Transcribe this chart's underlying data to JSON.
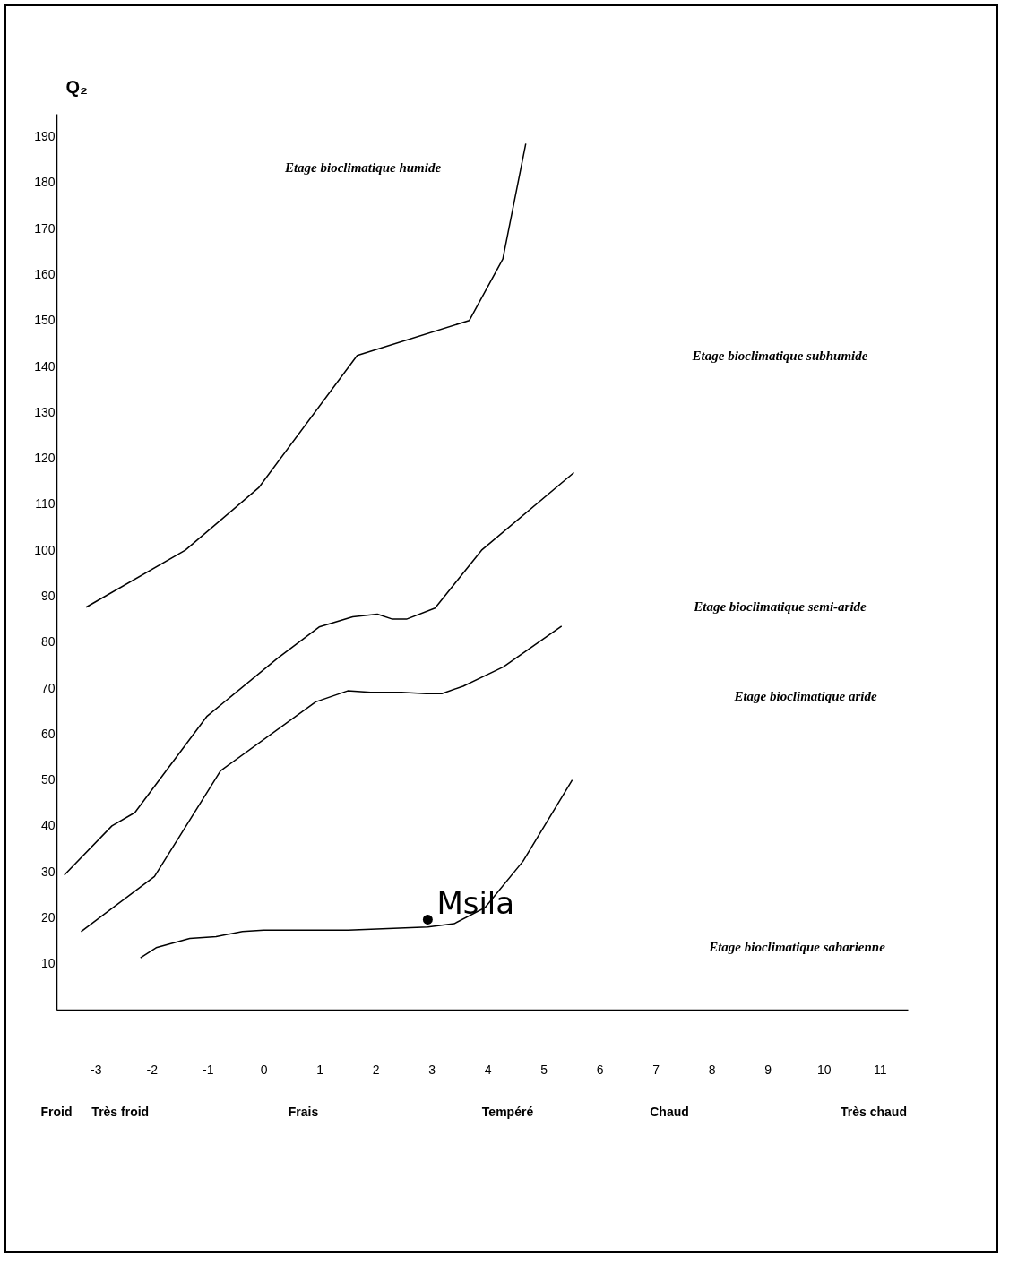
{
  "chart_data": {
    "type": "line",
    "ylabel": "Q₂",
    "xlim": [
      -3.7,
      11.5
    ],
    "ylim": [
      0,
      195
    ],
    "xticks": [
      -3,
      -2,
      -1,
      0,
      1,
      2,
      3,
      4,
      5,
      6,
      7,
      8,
      9,
      10,
      11
    ],
    "yticks": [
      10,
      20,
      30,
      40,
      50,
      60,
      70,
      80,
      90,
      100,
      110,
      120,
      130,
      140,
      150,
      160,
      170,
      180,
      190
    ],
    "grid": false,
    "marker": "none",
    "line_style": "solid",
    "series": [
      {
        "color": "#000000",
        "x": [
          -3.17,
          -1.4,
          -0.09,
          1.67,
          3.67,
          4.27,
          4.68
        ],
        "values": [
          87.6,
          100,
          113.6,
          142.4,
          150,
          163.4,
          188.5
        ]
      },
      {
        "color": "#000000",
        "x": [
          -3.56,
          -2.71,
          -2.3,
          -1.01,
          0.25,
          0.99,
          1.59,
          2.03,
          2.3,
          2.55,
          3.06,
          3.89,
          5.54
        ],
        "values": [
          29.3,
          40,
          42.9,
          63.9,
          76.5,
          83.3,
          85.5,
          86.1,
          85,
          85,
          87.4,
          100,
          116.9
        ]
      },
      {
        "color": "#000000",
        "x": [
          -3.26,
          -1.95,
          -0.77,
          0.93,
          1.5,
          1.91,
          2.46,
          2.9,
          3.18,
          3.56,
          4.28,
          5.32
        ],
        "values": [
          17,
          29,
          52,
          67,
          69.4,
          69.1,
          69.1,
          68.8,
          68.8,
          70.4,
          74.6,
          83.5
        ]
      },
      {
        "color": "#000000",
        "x": [
          -2.2,
          -1.92,
          -1.32,
          -0.85,
          -0.38,
          0,
          1.51,
          2.93,
          3.4,
          3.95,
          4.63,
          5.51
        ],
        "values": [
          11.3,
          13.5,
          15.5,
          15.9,
          17,
          17.3,
          17.3,
          18,
          18.7,
          22.2,
          32.3,
          50
        ]
      },
      {
        "name": "Msila",
        "type": "scatter",
        "marker": "circle",
        "color": "#000000",
        "x": [
          2.93
        ],
        "values": [
          19.6
        ]
      }
    ],
    "annotations": [
      "Etage bioclimatique humide",
      "Etage bioclimatique subhumide",
      "Etage bioclimatique semi-aride",
      "Etage bioclimatique aride",
      "Etage bioclimatique saharienne",
      "Froid",
      "Très froid",
      "Frais",
      "Tempéré",
      "Chaud",
      "Très chaud"
    ]
  }
}
